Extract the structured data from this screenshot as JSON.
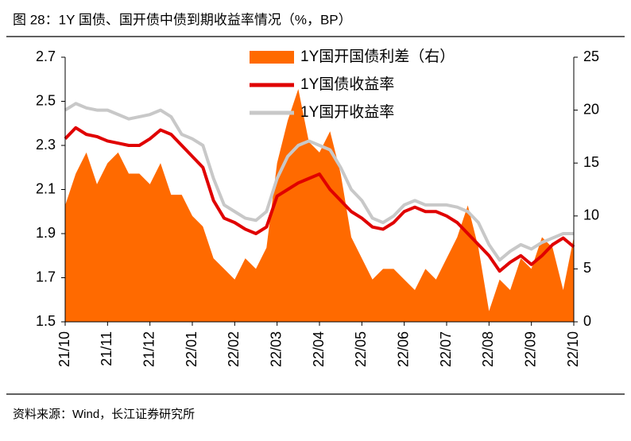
{
  "chart_data": {
    "type": "line",
    "title": "图 28：1Y 国债、国开债中债到期收益率情况（%，BP）",
    "source": "资料来源：Wind，长江证券研究所",
    "categories": [
      "21/10",
      null,
      null,
      null,
      "21/11",
      null,
      null,
      null,
      "21/12",
      null,
      null,
      null,
      "22/01",
      null,
      null,
      null,
      "22/02",
      null,
      null,
      null,
      "22/03",
      null,
      null,
      null,
      "22/04",
      null,
      null,
      null,
      "22/05",
      null,
      null,
      null,
      "22/06",
      null,
      null,
      null,
      "22/07",
      null,
      null,
      null,
      "22/08",
      null,
      null,
      null,
      "22/09",
      null,
      null,
      null,
      "22/10"
    ],
    "ylim": [
      1.5,
      2.7
    ],
    "yticks": [
      1.5,
      1.7,
      1.9,
      2.1,
      2.3,
      2.5,
      2.7
    ],
    "y2lim": [
      0,
      25
    ],
    "y2ticks": [
      0,
      5,
      10,
      15,
      20,
      25
    ],
    "legend": "top",
    "series": [
      {
        "name": "1Y国开国债利差（右）",
        "type": "area",
        "axis": "y2",
        "color": "#FF6A00",
        "values": [
          11,
          14,
          16,
          13,
          15,
          16,
          14,
          14,
          13,
          15,
          12,
          12,
          10,
          9,
          6,
          5,
          4,
          6,
          5,
          7,
          15,
          19,
          22,
          17,
          16,
          18,
          14,
          8,
          6,
          4,
          5,
          5,
          4,
          3,
          5,
          4,
          6,
          8,
          11,
          7,
          1,
          4,
          3,
          6,
          5,
          8,
          7,
          3,
          8
        ]
      },
      {
        "name": "1Y国债收益率",
        "type": "line",
        "color": "#E00000",
        "values": [
          2.33,
          2.38,
          2.35,
          2.34,
          2.32,
          2.31,
          2.3,
          2.3,
          2.33,
          2.37,
          2.35,
          2.3,
          2.25,
          2.2,
          2.05,
          1.97,
          1.95,
          1.92,
          1.9,
          1.93,
          2.07,
          2.1,
          2.13,
          2.15,
          2.17,
          2.1,
          2.05,
          2.0,
          1.97,
          1.93,
          1.92,
          1.95,
          2.0,
          2.02,
          2.0,
          2.0,
          1.98,
          1.95,
          1.9,
          1.85,
          1.8,
          1.73,
          1.77,
          1.8,
          1.76,
          1.8,
          1.85,
          1.88,
          1.84
        ]
      },
      {
        "name": "1Y国开收益率",
        "type": "line",
        "color": "#C8C8C8",
        "values": [
          2.46,
          2.49,
          2.47,
          2.46,
          2.46,
          2.44,
          2.42,
          2.43,
          2.44,
          2.46,
          2.43,
          2.35,
          2.33,
          2.3,
          2.15,
          2.03,
          2.0,
          1.97,
          1.96,
          2.0,
          2.15,
          2.25,
          2.3,
          2.32,
          2.3,
          2.28,
          2.2,
          2.1,
          2.05,
          1.97,
          1.95,
          1.98,
          2.03,
          2.05,
          2.03,
          2.03,
          2.03,
          2.02,
          2.0,
          1.95,
          1.85,
          1.78,
          1.82,
          1.85,
          1.83,
          1.86,
          1.88,
          1.9,
          1.9
        ]
      }
    ]
  }
}
